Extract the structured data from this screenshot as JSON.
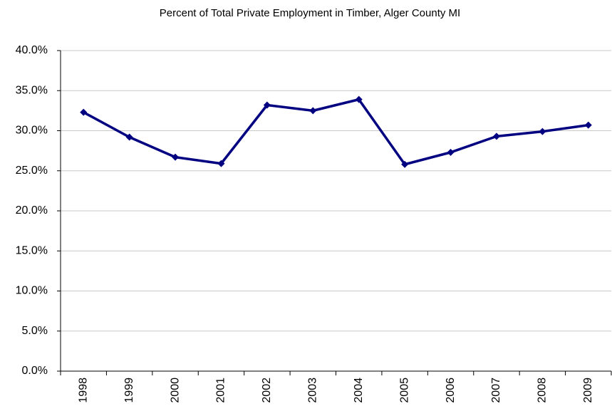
{
  "chart_data": {
    "type": "line",
    "title": "Percent of Total Private Employment in Timber, Alger County MI",
    "categories": [
      "1998",
      "1999",
      "2000",
      "2001",
      "2002",
      "2003",
      "2004",
      "2005",
      "2006",
      "2007",
      "2008",
      "2009"
    ],
    "series": [
      {
        "name": "Timber",
        "color": "#000080",
        "values": [
          32.3,
          29.2,
          26.7,
          25.9,
          33.2,
          32.5,
          33.9,
          25.8,
          27.3,
          29.3,
          29.9,
          30.7
        ]
      }
    ],
    "ylim": [
      0,
      40
    ],
    "yticks": [
      {
        "value": 0,
        "label": "0.0%"
      },
      {
        "value": 5,
        "label": "5.0%"
      },
      {
        "value": 10,
        "label": "10.0%"
      },
      {
        "value": 15,
        "label": "15.0%"
      },
      {
        "value": 20,
        "label": "20.0%"
      },
      {
        "value": 25,
        "label": "25.0%"
      },
      {
        "value": 30,
        "label": "30.0%"
      },
      {
        "value": 35,
        "label": "35.0%"
      },
      {
        "value": 40,
        "label": "40.0%"
      }
    ],
    "grid": true
  }
}
